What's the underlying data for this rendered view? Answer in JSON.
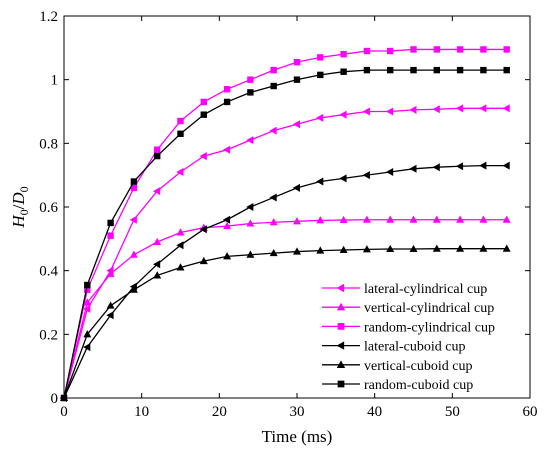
{
  "chart_data": {
    "type": "line",
    "xlabel": "Time (ms)",
    "ylabel_main": "H",
    "ylabel_sub0": "0",
    "ylabel_sep": "/",
    "ylabel_main2": "D",
    "ylabel_sub1": "0",
    "xlim": [
      0,
      60
    ],
    "ylim": [
      0,
      1.2
    ],
    "xticks": [
      "0",
      "10",
      "20",
      "30",
      "40",
      "50",
      "60"
    ],
    "yticks": [
      "0",
      "0.2",
      "0.4",
      "0.6",
      "0.8",
      "1",
      "1.2"
    ],
    "grid": false,
    "legend_position": "bottom-right",
    "x": [
      0,
      3,
      6,
      9,
      12,
      15,
      18,
      21,
      24,
      27,
      30,
      33,
      36,
      39,
      42,
      45,
      48,
      51,
      54,
      57
    ],
    "series": [
      {
        "name": "lateral-cylindrical cup",
        "color": "#ff00ff",
        "marker": "triangle-left",
        "values": [
          0,
          0.28,
          0.4,
          0.56,
          0.65,
          0.71,
          0.76,
          0.78,
          0.81,
          0.84,
          0.86,
          0.88,
          0.89,
          0.9,
          0.9,
          0.905,
          0.907,
          0.91,
          0.91,
          0.91
        ]
      },
      {
        "name": "vertical-cylindrical cup",
        "color": "#ff00ff",
        "marker": "triangle-up",
        "values": [
          0,
          0.3,
          0.39,
          0.45,
          0.49,
          0.52,
          0.535,
          0.54,
          0.548,
          0.552,
          0.555,
          0.558,
          0.559,
          0.56,
          0.56,
          0.56,
          0.56,
          0.56,
          0.56,
          0.56
        ]
      },
      {
        "name": "random-cylindrical cup",
        "color": "#ff00ff",
        "marker": "square",
        "values": [
          0,
          0.34,
          0.51,
          0.66,
          0.78,
          0.87,
          0.93,
          0.97,
          1.0,
          1.03,
          1.055,
          1.07,
          1.08,
          1.09,
          1.09,
          1.095,
          1.095,
          1.095,
          1.095,
          1.095
        ]
      },
      {
        "name": "lateral-cuboid cup",
        "color": "#000000",
        "marker": "triangle-left",
        "values": [
          0,
          0.16,
          0.26,
          0.35,
          0.42,
          0.48,
          0.53,
          0.56,
          0.6,
          0.63,
          0.66,
          0.68,
          0.69,
          0.7,
          0.71,
          0.72,
          0.725,
          0.728,
          0.73,
          0.73
        ]
      },
      {
        "name": "vertical-cuboid cup",
        "color": "#000000",
        "marker": "triangle-up",
        "values": [
          0,
          0.2,
          0.29,
          0.34,
          0.385,
          0.41,
          0.43,
          0.445,
          0.45,
          0.455,
          0.46,
          0.463,
          0.465,
          0.467,
          0.468,
          0.468,
          0.469,
          0.469,
          0.469,
          0.469
        ]
      },
      {
        "name": "random-cuboid cup",
        "color": "#000000",
        "marker": "square",
        "values": [
          0,
          0.355,
          0.55,
          0.68,
          0.76,
          0.83,
          0.89,
          0.93,
          0.96,
          0.98,
          1.0,
          1.015,
          1.025,
          1.03,
          1.03,
          1.03,
          1.03,
          1.03,
          1.03,
          1.03
        ]
      }
    ]
  }
}
